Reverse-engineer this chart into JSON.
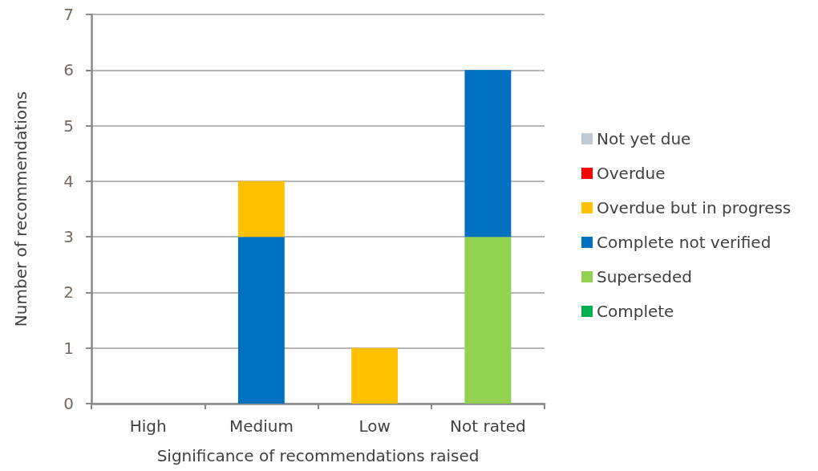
{
  "chart_data": {
    "type": "bar",
    "xlabel": "Significance of recommendations raised",
    "ylabel": "Number of recommendations",
    "categories": [
      "High",
      "Medium",
      "Low",
      "Not rated"
    ],
    "series": [
      {
        "name": "Complete",
        "color": "#00b050",
        "values": [
          0,
          0,
          0,
          0
        ]
      },
      {
        "name": "Superseded",
        "color": "#92d050",
        "values": [
          0,
          0,
          0,
          3
        ]
      },
      {
        "name": "Complete not verified",
        "color": "#0070c0",
        "values": [
          0,
          3,
          0,
          3
        ]
      },
      {
        "name": "Overdue but in progress",
        "color": "#ffc000",
        "values": [
          0,
          1,
          1,
          0
        ]
      },
      {
        "name": "Overdue",
        "color": "#ff0000",
        "values": [
          0,
          0,
          0,
          0
        ]
      },
      {
        "name": "Not yet due",
        "color": "#c0cad3",
        "values": [
          0,
          0,
          0,
          0
        ]
      }
    ],
    "stacked": true,
    "ylim": [
      0,
      7
    ],
    "yticks": [
      0,
      1,
      2,
      3,
      4,
      5,
      6,
      7
    ],
    "grid": "y",
    "legend": "right"
  }
}
